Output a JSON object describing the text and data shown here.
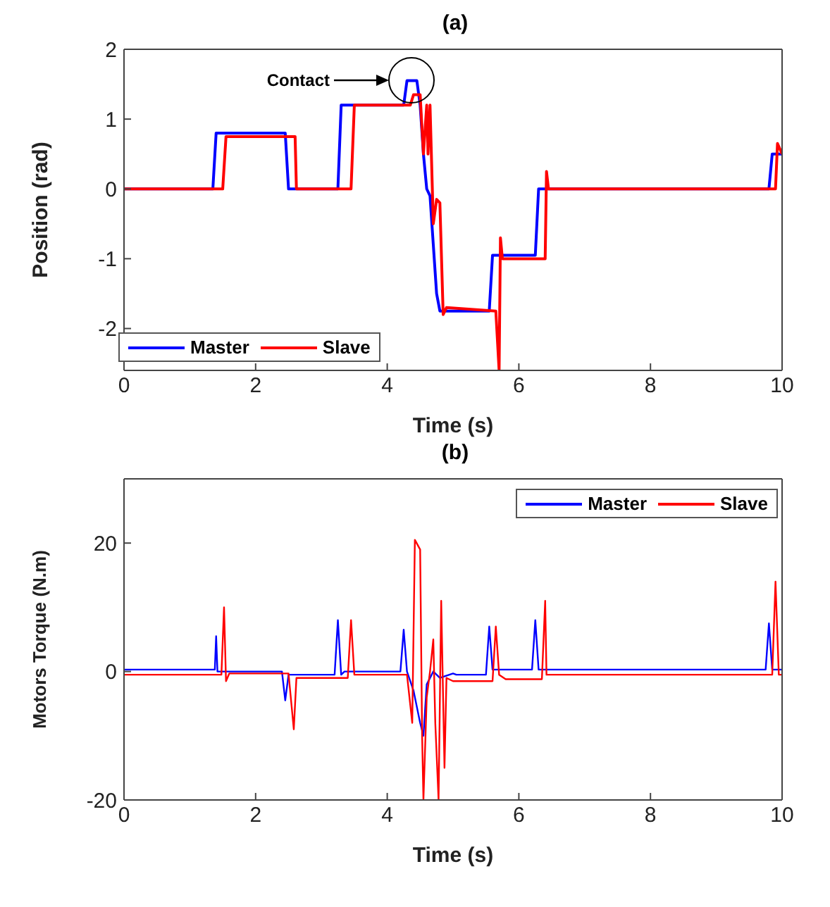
{
  "chart_data": [
    {
      "type": "line",
      "title": "(a)",
      "xlabel": "Time (s)",
      "ylabel": "Position (rad)",
      "xlim": [
        0,
        10
      ],
      "xticks": [
        0,
        2,
        4,
        6,
        8,
        10
      ],
      "ylim": [
        -2.6,
        2
      ],
      "yticks": [
        -2,
        -1,
        0,
        1,
        2
      ],
      "legend": "bottom left",
      "annotations": [
        "Contact"
      ],
      "series": [
        {
          "name": "Master",
          "color": "#0000ff",
          "x": [
            0,
            1.35,
            1.4,
            2.45,
            2.5,
            3.25,
            3.3,
            4.25,
            4.3,
            4.45,
            4.5,
            4.55,
            4.6,
            4.65,
            4.7,
            4.75,
            4.8,
            5.55,
            5.6,
            6.25,
            6.3,
            9.8,
            9.85,
            10
          ],
          "values": [
            0,
            0,
            0.8,
            0.8,
            0,
            0,
            1.2,
            1.2,
            1.55,
            1.55,
            1.2,
            0.5,
            0,
            -0.1,
            -0.8,
            -1.5,
            -1.75,
            -1.75,
            -0.95,
            -0.95,
            0,
            0,
            0.5,
            0.5
          ]
        },
        {
          "name": "Slave",
          "color": "#ff0000",
          "x": [
            0,
            1.5,
            1.55,
            2.6,
            2.62,
            3.45,
            3.5,
            4.35,
            4.4,
            4.5,
            4.55,
            4.6,
            4.62,
            4.65,
            4.7,
            4.75,
            4.8,
            4.85,
            4.9,
            5.65,
            5.7,
            5.72,
            5.75,
            6.4,
            6.42,
            6.45,
            9.9,
            9.93,
            10
          ],
          "values": [
            0,
            0,
            0.75,
            0.75,
            0,
            0,
            1.2,
            1.2,
            1.35,
            1.35,
            0.5,
            1.2,
            0.5,
            1.2,
            -0.5,
            -0.15,
            -0.2,
            -1.8,
            -1.7,
            -1.75,
            -2.6,
            -0.7,
            -1.0,
            -1.0,
            0.25,
            0,
            0,
            0.65,
            0.5
          ]
        }
      ]
    },
    {
      "type": "line",
      "title": "(b)",
      "xlabel": "Time (s)",
      "ylabel": "Motors Torque (N.m)",
      "xlim": [
        0,
        10
      ],
      "xticks": [
        0,
        2,
        4,
        6,
        8,
        10
      ],
      "ylim": [
        -20,
        30
      ],
      "yticks": [
        -20,
        0,
        20
      ],
      "legend": "top right",
      "series": [
        {
          "name": "Master",
          "color": "#0000ff",
          "x": [
            0,
            1.38,
            1.4,
            1.42,
            2.4,
            2.45,
            2.5,
            3.2,
            3.25,
            3.3,
            3.35,
            4.2,
            4.25,
            4.3,
            4.4,
            4.5,
            4.55,
            4.6,
            4.7,
            4.8,
            5.0,
            5.05,
            5.5,
            5.55,
            5.6,
            6.2,
            6.25,
            6.3,
            9.75,
            9.8,
            9.85,
            10
          ],
          "values": [
            0.3,
            0.3,
            5.5,
            0,
            0,
            -4.5,
            -0.5,
            -0.5,
            8,
            -0.5,
            0,
            0,
            6.5,
            0,
            -3,
            -8,
            -10,
            -2,
            0,
            -1,
            -0.3,
            -0.5,
            -0.5,
            7,
            0.3,
            0.3,
            8,
            0.3,
            0.3,
            7.5,
            0.3,
            0.3
          ]
        },
        {
          "name": "Slave",
          "color": "#ff0000",
          "x": [
            0,
            1.48,
            1.52,
            1.55,
            1.6,
            2.5,
            2.58,
            2.62,
            3.4,
            3.45,
            3.5,
            4.3,
            4.38,
            4.42,
            4.5,
            4.53,
            4.55,
            4.6,
            4.65,
            4.7,
            4.73,
            4.78,
            4.82,
            4.87,
            4.9,
            5.0,
            5.6,
            5.65,
            5.7,
            5.8,
            6.35,
            6.4,
            6.42,
            9.85,
            9.9,
            9.95,
            10
          ],
          "values": [
            -0.5,
            -0.5,
            10,
            -1.5,
            -0.3,
            -0.3,
            -9,
            -1,
            -1,
            8,
            -0.5,
            -0.5,
            -8,
            20.5,
            19,
            -10,
            -20,
            -4,
            0,
            5,
            -8,
            -20,
            11,
            -15,
            -1,
            -1.5,
            -1.5,
            7,
            -0.5,
            -1.2,
            -1.2,
            11,
            -0.5,
            -0.5,
            14,
            -0.5,
            -0.5
          ]
        }
      ]
    }
  ]
}
